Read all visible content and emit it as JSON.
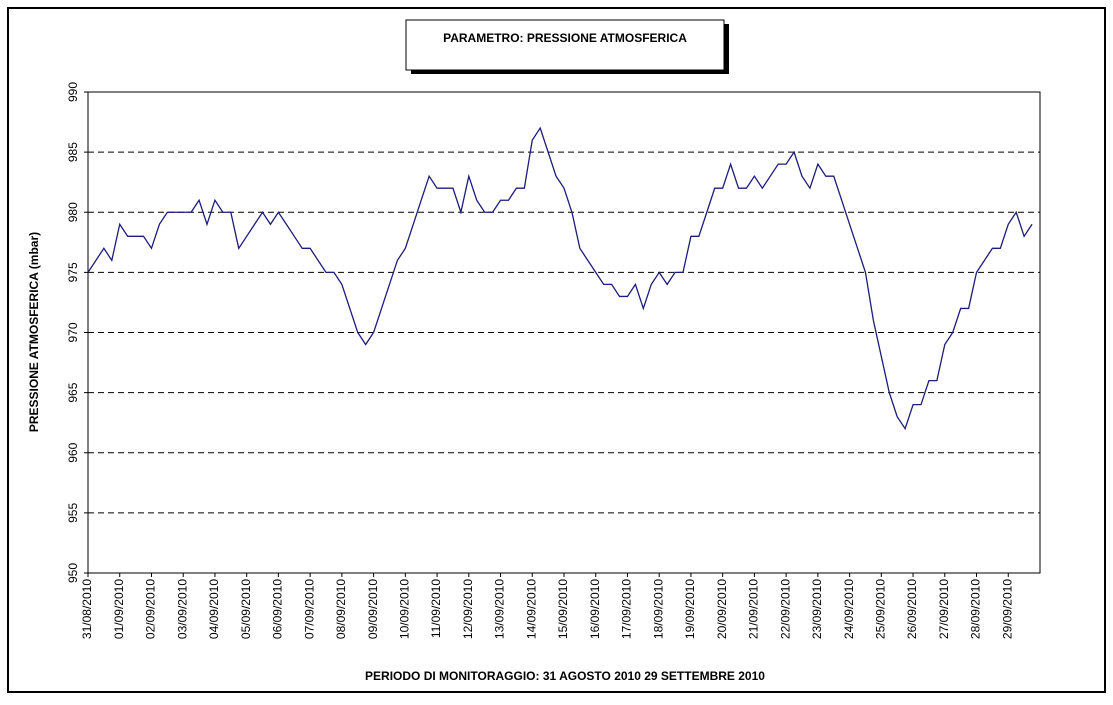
{
  "chart_data": {
    "type": "line",
    "title": "PARAMETRO: PRESSIONE ATMOSFERICA",
    "y_label": "PRESSIONE ATMOSFERICA (mbar)",
    "x_label": "PERIODO DI MONITORAGGIO: 31 AGOSTO 2010 29 SETTEMBRE 2010",
    "x": [
      "31/08/2010",
      null,
      null,
      null,
      "01/09/2010",
      null,
      null,
      null,
      "02/09/2010",
      null,
      null,
      null,
      "03/09/2010",
      null,
      null,
      null,
      "04/09/2010",
      null,
      null,
      null,
      "05/09/2010",
      null,
      null,
      null,
      "06/09/2010",
      null,
      null,
      null,
      "07/09/2010",
      null,
      null,
      null,
      "08/09/2010",
      null,
      null,
      null,
      "09/09/2010",
      null,
      null,
      null,
      "10/09/2010",
      null,
      null,
      null,
      "11/09/2010",
      null,
      null,
      null,
      "12/09/2010",
      null,
      null,
      null,
      "13/09/2010",
      null,
      null,
      null,
      "14/09/2010",
      null,
      null,
      null,
      "15/09/2010",
      null,
      null,
      null,
      "16/09/2010",
      null,
      null,
      null,
      "17/09/2010",
      null,
      null,
      null,
      "18/09/2010",
      null,
      null,
      null,
      "19/09/2010",
      null,
      null,
      null,
      "20/09/2010",
      null,
      null,
      null,
      "21/09/2010",
      null,
      null,
      null,
      "22/09/2010",
      null,
      null,
      null,
      "23/09/2010",
      null,
      null,
      null,
      "24/09/2010",
      null,
      null,
      null,
      "25/09/2010",
      null,
      null,
      null,
      "26/09/2010",
      null,
      null,
      null,
      "27/09/2010",
      null,
      null,
      null,
      "28/09/2010",
      null,
      null,
      null,
      "29/09/2010",
      null,
      null,
      null
    ],
    "series": [
      {
        "color": "#1c1c7a",
        "values": [
          975,
          976,
          977,
          976,
          979,
          978,
          978,
          978,
          977,
          979,
          980,
          980,
          980,
          980,
          981,
          979,
          981,
          980,
          980,
          977,
          978,
          979,
          980,
          979,
          980,
          979,
          978,
          977,
          977,
          976,
          975,
          975,
          974,
          972,
          970,
          969,
          970,
          972,
          974,
          976,
          977,
          979,
          981,
          983,
          982,
          982,
          982,
          980,
          983,
          981,
          980,
          980,
          981,
          981,
          982,
          982,
          986,
          987,
          985,
          983,
          982,
          980,
          977,
          976,
          975,
          974,
          974,
          973,
          973,
          974,
          972,
          974,
          975,
          974,
          975,
          975,
          978,
          978,
          980,
          982,
          982,
          984,
          982,
          982,
          983,
          982,
          983,
          984,
          984,
          985,
          983,
          982,
          984,
          983,
          983,
          981,
          979,
          977,
          975,
          971,
          968,
          965,
          963,
          962,
          964,
          964,
          966,
          966,
          969,
          970,
          972,
          972,
          975,
          976,
          977,
          977,
          979,
          980,
          978,
          979
        ]
      }
    ],
    "ylim": [
      950,
      990
    ],
    "yticks": [
      950,
      955,
      960,
      965,
      970,
      975,
      980,
      985,
      990
    ],
    "grid": true
  }
}
